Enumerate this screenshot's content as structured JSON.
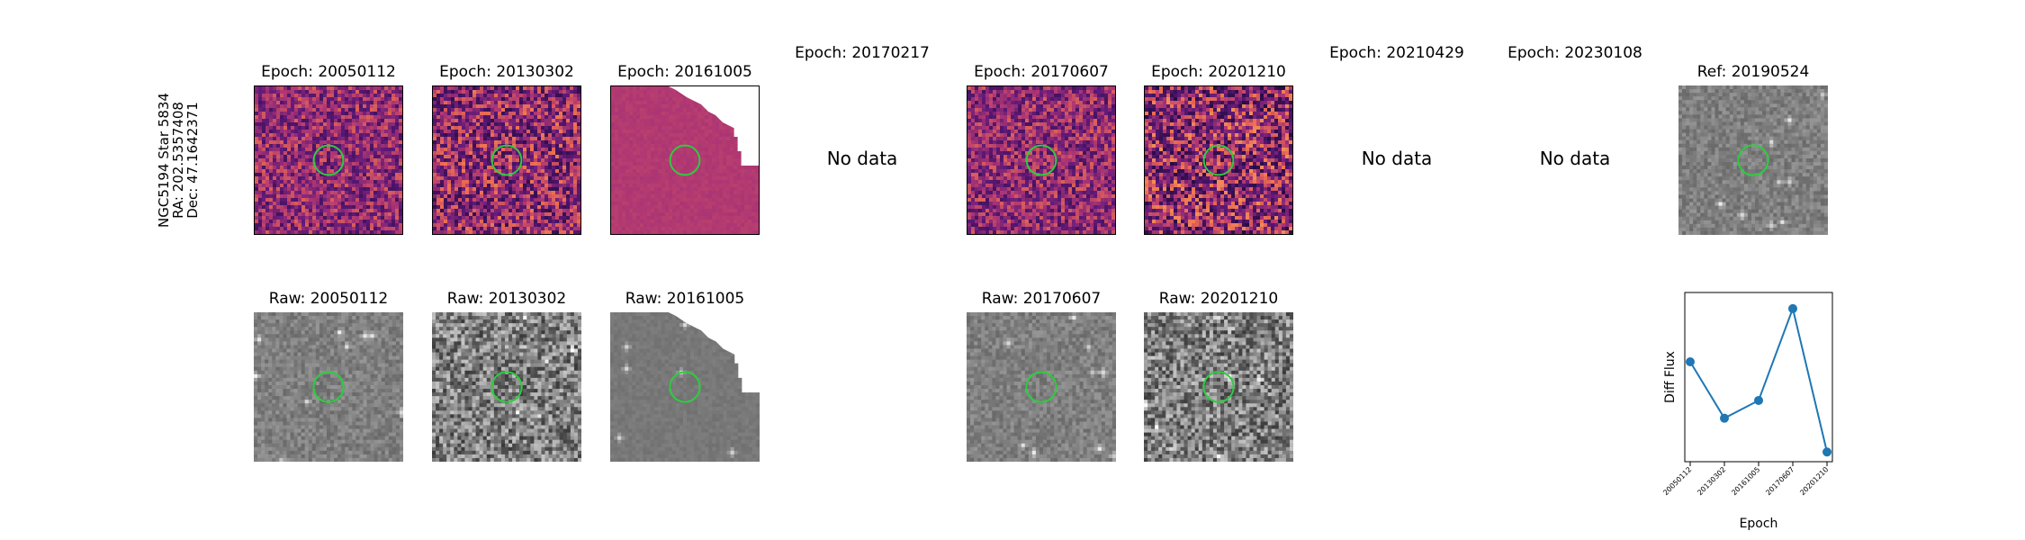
{
  "target": {
    "name": "NGC5194 Star 5834",
    "ra": "RA: 202.5357408",
    "dec": "Dec: 47.1642371"
  },
  "no_data_text": "No data",
  "epochs": [
    {
      "diff_title": "Epoch: 20050112",
      "raw_title": "Raw: 20050112",
      "has_data": true,
      "partial": false
    },
    {
      "diff_title": "Epoch: 20130302",
      "raw_title": "Raw: 20130302",
      "has_data": true,
      "partial": false
    },
    {
      "diff_title": "Epoch: 20161005",
      "raw_title": "Raw: 20161005",
      "has_data": true,
      "partial": true
    },
    {
      "diff_title": "Epoch: 20170217",
      "raw_title": "",
      "has_data": false,
      "partial": false
    },
    {
      "diff_title": "Epoch: 20170607",
      "raw_title": "Raw: 20170607",
      "has_data": true,
      "partial": false
    },
    {
      "diff_title": "Epoch: 20201210",
      "raw_title": "Raw: 20201210",
      "has_data": true,
      "partial": false
    },
    {
      "diff_title": "Epoch: 20210429",
      "raw_title": "",
      "has_data": false,
      "partial": false
    },
    {
      "diff_title": "Epoch: 20230108",
      "raw_title": "",
      "has_data": false,
      "partial": false
    }
  ],
  "reference": {
    "title": "Ref: 20190524"
  },
  "colors": {
    "aperture": "#2ecc40",
    "line": "#1f77b4"
  },
  "chart_data": {
    "type": "line",
    "title": "",
    "xlabel": "Epoch",
    "ylabel": "Diff Flux",
    "categories": [
      "20050112",
      "20130302",
      "20161005",
      "20170607",
      "20201210"
    ],
    "values": [
      0.52,
      0.17,
      0.28,
      0.85,
      -0.04
    ],
    "ylim": [
      -0.1,
      0.95
    ],
    "grid": false,
    "y_ticks_shown": false
  }
}
